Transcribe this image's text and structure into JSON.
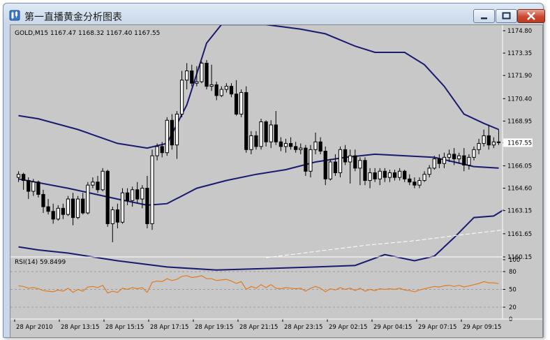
{
  "window": {
    "title": "第一直播黄金分析图表",
    "icons": {
      "app": "chart-app-icon",
      "minimize": "minimize-icon",
      "maximize": "maximize-icon",
      "close": "close-icon"
    }
  },
  "chart_data": {
    "type": "candlestick",
    "symbol_info": "GOLD,M15  1167.47 1168.32 1167.40 1167.55",
    "price_axis": {
      "ticks": [
        "1174.80",
        "1173.35",
        "1171.90",
        "1170.40",
        "1168.95",
        "1167.55",
        "1166.05",
        "1164.60",
        "1163.15",
        "1161.65",
        "1160.15"
      ],
      "range": [
        1160.15,
        1174.8
      ],
      "current_price": "1167.55"
    },
    "time_axis": [
      "28 Apr 2010",
      "28 Apr 13:15",
      "28 Apr 15:15",
      "28 Apr 17:15",
      "28 Apr 19:15",
      "28 Apr 21:15",
      "28 Apr 23:15",
      "29 Apr 02:15",
      "29 Apr 04:15",
      "29 Apr 07:15",
      "29 Apr 09:15"
    ],
    "candles": [
      [
        1165.3,
        1165.7,
        1165.0,
        1165.5
      ],
      [
        1165.5,
        1165.6,
        1164.5,
        1165.1
      ],
      [
        1165.1,
        1165.3,
        1163.9,
        1164.4
      ],
      [
        1164.4,
        1165.2,
        1164.1,
        1165.0
      ],
      [
        1165.0,
        1165.1,
        1164.0,
        1164.2
      ],
      [
        1164.2,
        1164.5,
        1163.0,
        1163.4
      ],
      [
        1163.4,
        1163.9,
        1162.9,
        1163.1
      ],
      [
        1163.1,
        1163.6,
        1162.3,
        1162.6
      ],
      [
        1162.6,
        1163.5,
        1162.5,
        1163.3
      ],
      [
        1163.3,
        1163.6,
        1162.6,
        1162.9
      ],
      [
        1162.9,
        1164.1,
        1162.8,
        1163.9
      ],
      [
        1163.9,
        1164.3,
        1162.2,
        1162.7
      ],
      [
        1162.7,
        1164.1,
        1162.6,
        1163.9
      ],
      [
        1163.9,
        1164.3,
        1162.9,
        1163.0
      ],
      [
        1163.0,
        1165.0,
        1162.9,
        1164.8
      ],
      [
        1164.8,
        1165.3,
        1164.6,
        1165.0
      ],
      [
        1165.0,
        1165.4,
        1164.3,
        1164.5
      ],
      [
        1164.5,
        1165.9,
        1164.4,
        1165.7
      ],
      [
        1165.7,
        1165.8,
        1162.1,
        1162.3
      ],
      [
        1162.3,
        1163.4,
        1161.1,
        1163.2
      ],
      [
        1163.2,
        1163.6,
        1162.0,
        1162.4
      ],
      [
        1162.4,
        1164.6,
        1162.3,
        1164.3
      ],
      [
        1164.3,
        1164.6,
        1163.5,
        1163.8
      ],
      [
        1163.8,
        1164.7,
        1163.4,
        1164.5
      ],
      [
        1164.5,
        1165.0,
        1163.6,
        1163.9
      ],
      [
        1163.9,
        1164.8,
        1163.3,
        1164.6
      ],
      [
        1164.6,
        1165.4,
        1162.0,
        1162.3
      ],
      [
        1162.3,
        1167.1,
        1161.9,
        1166.7
      ],
      [
        1166.7,
        1167.5,
        1166.4,
        1167.3
      ],
      [
        1167.3,
        1167.6,
        1166.6,
        1166.9
      ],
      [
        1166.9,
        1169.2,
        1166.7,
        1169.0
      ],
      [
        1169.0,
        1169.4,
        1167.1,
        1167.4
      ],
      [
        1167.4,
        1169.6,
        1166.5,
        1169.4
      ],
      [
        1169.4,
        1172.2,
        1169.2,
        1171.6
      ],
      [
        1171.6,
        1172.7,
        1171.0,
        1172.2
      ],
      [
        1172.2,
        1172.6,
        1171.2,
        1171.4
      ],
      [
        1171.4,
        1172.5,
        1171.2,
        1171.5
      ],
      [
        1171.5,
        1172.8,
        1171.4,
        1172.7
      ],
      [
        1172.7,
        1172.9,
        1171.0,
        1171.2
      ],
      [
        1171.2,
        1172.6,
        1170.9,
        1171.3
      ],
      [
        1171.3,
        1171.5,
        1170.3,
        1170.6
      ],
      [
        1170.6,
        1171.2,
        1170.5,
        1171.0
      ],
      [
        1171.0,
        1171.4,
        1170.8,
        1171.2
      ],
      [
        1171.2,
        1171.4,
        1170.5,
        1170.7
      ],
      [
        1170.7,
        1171.6,
        1169.3,
        1169.4
      ],
      [
        1169.4,
        1171.0,
        1169.2,
        1170.8
      ],
      [
        1170.8,
        1171.2,
        1166.9,
        1167.1
      ],
      [
        1167.1,
        1168.3,
        1166.8,
        1168.0
      ],
      [
        1168.0,
        1168.3,
        1167.1,
        1167.3
      ],
      [
        1167.3,
        1169.1,
        1167.1,
        1168.9
      ],
      [
        1168.9,
        1169.0,
        1167.3,
        1167.6
      ],
      [
        1167.6,
        1169.0,
        1167.2,
        1168.7
      ],
      [
        1168.7,
        1169.6,
        1167.4,
        1167.6
      ],
      [
        1167.6,
        1167.9,
        1167.0,
        1167.3
      ],
      [
        1167.3,
        1167.8,
        1166.9,
        1167.5
      ],
      [
        1167.5,
        1167.9,
        1167.1,
        1167.3
      ],
      [
        1167.3,
        1167.6,
        1166.9,
        1167.1
      ],
      [
        1167.1,
        1167.5,
        1166.8,
        1167.2
      ],
      [
        1167.2,
        1167.4,
        1165.4,
        1165.7
      ],
      [
        1165.7,
        1167.4,
        1165.3,
        1167.1
      ],
      [
        1167.1,
        1168.2,
        1166.8,
        1167.6
      ],
      [
        1167.6,
        1167.9,
        1166.8,
        1167.0
      ],
      [
        1167.0,
        1167.3,
        1164.8,
        1165.2
      ],
      [
        1165.2,
        1166.5,
        1165.1,
        1166.3
      ],
      [
        1166.3,
        1166.8,
        1165.4,
        1165.6
      ],
      [
        1165.6,
        1167.3,
        1165.3,
        1167.1
      ],
      [
        1167.1,
        1167.4,
        1166.1,
        1166.3
      ],
      [
        1166.3,
        1167.1,
        1164.9,
        1166.7
      ],
      [
        1166.7,
        1167.1,
        1165.7,
        1165.9
      ],
      [
        1165.9,
        1166.6,
        1164.8,
        1166.4
      ],
      [
        1166.4,
        1166.6,
        1164.8,
        1165.1
      ],
      [
        1165.1,
        1165.9,
        1164.6,
        1165.6
      ],
      [
        1165.6,
        1165.9,
        1165.0,
        1165.2
      ],
      [
        1165.2,
        1165.9,
        1164.8,
        1165.7
      ],
      [
        1165.7,
        1165.9,
        1165.0,
        1165.3
      ],
      [
        1165.3,
        1165.8,
        1165.0,
        1165.6
      ],
      [
        1165.6,
        1165.8,
        1165.1,
        1165.3
      ],
      [
        1165.3,
        1165.9,
        1165.1,
        1165.7
      ],
      [
        1165.7,
        1165.8,
        1165.0,
        1165.2
      ],
      [
        1165.2,
        1165.5,
        1164.8,
        1165.0
      ],
      [
        1165.0,
        1165.3,
        1164.6,
        1164.8
      ],
      [
        1164.8,
        1165.3,
        1164.6,
        1165.1
      ],
      [
        1165.1,
        1165.7,
        1165.0,
        1165.5
      ],
      [
        1165.5,
        1166.1,
        1165.3,
        1165.9
      ],
      [
        1165.9,
        1166.7,
        1165.8,
        1166.5
      ],
      [
        1166.5,
        1166.8,
        1165.9,
        1166.2
      ],
      [
        1166.2,
        1166.9,
        1165.9,
        1166.6
      ],
      [
        1166.6,
        1167.1,
        1166.3,
        1166.8
      ],
      [
        1166.8,
        1167.2,
        1166.1,
        1166.5
      ],
      [
        1166.5,
        1166.9,
        1166.2,
        1166.7
      ],
      [
        1166.7,
        1167.2,
        1165.7,
        1166.1
      ],
      [
        1166.1,
        1166.8,
        1165.8,
        1166.6
      ],
      [
        1166.6,
        1167.3,
        1166.4,
        1167.1
      ],
      [
        1167.1,
        1167.8,
        1166.8,
        1167.5
      ],
      [
        1167.5,
        1168.4,
        1167.3,
        1168.0
      ],
      [
        1168.0,
        1168.7,
        1167.1,
        1167.4
      ],
      [
        1167.4,
        1167.9,
        1167.2,
        1167.6
      ],
      [
        1167.6,
        1168.4,
        1167.4,
        1167.55
      ]
    ],
    "bollinger_upper": [
      [
        0,
        1169.3
      ],
      [
        4,
        1169.1
      ],
      [
        12,
        1168.4
      ],
      [
        20,
        1167.5
      ],
      [
        26,
        1167.2
      ],
      [
        30,
        1167.5
      ],
      [
        34,
        1170.0
      ],
      [
        38,
        1174.0
      ],
      [
        41,
        1175.2
      ],
      [
        50,
        1175.2
      ],
      [
        57,
        1174.9
      ],
      [
        62,
        1174.6
      ],
      [
        68,
        1173.8
      ],
      [
        72,
        1173.4
      ],
      [
        78,
        1173.4
      ],
      [
        82,
        1172.6
      ],
      [
        86,
        1171.2
      ],
      [
        90,
        1169.4
      ],
      [
        94,
        1168.8
      ],
      [
        97,
        1168.4
      ]
    ],
    "bollinger_middle": [
      [
        0,
        1165.2
      ],
      [
        10,
        1164.6
      ],
      [
        20,
        1163.9
      ],
      [
        26,
        1163.5
      ],
      [
        30,
        1163.6
      ],
      [
        36,
        1164.6
      ],
      [
        42,
        1165.1
      ],
      [
        48,
        1165.5
      ],
      [
        54,
        1165.8
      ],
      [
        60,
        1166.3
      ],
      [
        66,
        1166.6
      ],
      [
        72,
        1166.8
      ],
      [
        78,
        1166.7
      ],
      [
        84,
        1166.6
      ],
      [
        88,
        1166.3
      ],
      [
        92,
        1166.0
      ],
      [
        97,
        1165.9
      ]
    ],
    "bollinger_lower": [
      [
        0,
        1160.8
      ],
      [
        4,
        1160.6
      ],
      [
        10,
        1160.4
      ],
      [
        20,
        1159.9
      ],
      [
        30,
        1159.5
      ],
      [
        40,
        1159.3
      ],
      [
        50,
        1159.4
      ],
      [
        60,
        1159.5
      ],
      [
        68,
        1159.6
      ],
      [
        74,
        1160.3
      ],
      [
        80,
        1159.9
      ],
      [
        84,
        1160.2
      ],
      [
        88,
        1161.4
      ],
      [
        92,
        1162.7
      ],
      [
        96,
        1162.8
      ],
      [
        98,
        1163.2
      ]
    ],
    "ma_dashed": [
      [
        50,
        1160.1
      ],
      [
        60,
        1160.5
      ],
      [
        70,
        1160.9
      ],
      [
        80,
        1161.2
      ],
      [
        90,
        1161.6
      ],
      [
        98,
        1161.9
      ]
    ],
    "rsi": {
      "label": "RSI(14) 59.8499",
      "ticks": [
        "100",
        "80",
        "50",
        "20",
        "0"
      ],
      "levels": [
        80,
        50,
        20
      ],
      "values": [
        56,
        55,
        52,
        53,
        51,
        48,
        47,
        46,
        49,
        47,
        52,
        45,
        50,
        47,
        54,
        55,
        53,
        57,
        44,
        47,
        45,
        52,
        50,
        53,
        51,
        53,
        45,
        62,
        64,
        63,
        68,
        65,
        67,
        72,
        73,
        70,
        71,
        73,
        68,
        68,
        65,
        66,
        67,
        64,
        60,
        63,
        50,
        55,
        52,
        58,
        53,
        58,
        52,
        51,
        53,
        52,
        51,
        52,
        47,
        52,
        55,
        52,
        46,
        51,
        49,
        53,
        50,
        52,
        48,
        52,
        47,
        50,
        48,
        51,
        50,
        51,
        50,
        52,
        49,
        48,
        46,
        49,
        51,
        53,
        55,
        54,
        56,
        57,
        55,
        57,
        54,
        56,
        58,
        60,
        63,
        61,
        61,
        59.8
      ]
    },
    "colors": {
      "background": "#c8c8c8",
      "bands": "#1a1a6e",
      "rsi_line": "#e07b1f",
      "grid": "#9a9a9a",
      "bear": "#000000",
      "bull": "#ffffff"
    }
  }
}
